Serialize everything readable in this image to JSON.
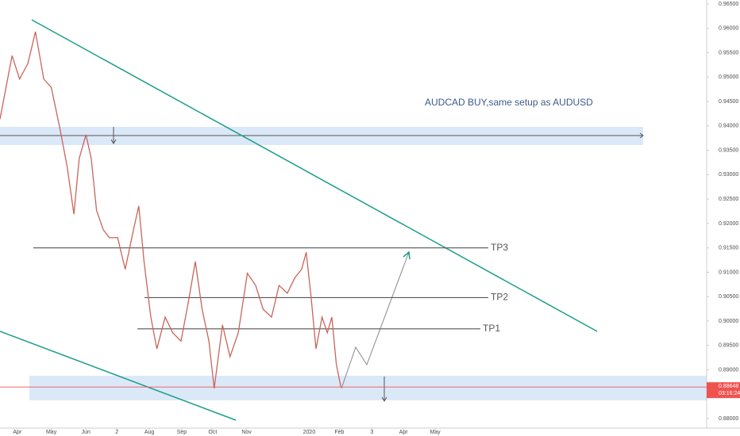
{
  "chart_data": {
    "type": "line",
    "annotation": "AUDCAD BUY,same setup as AUDUSD",
    "series": [
      {
        "color": "#c8655a",
        "x": [
          -2.3,
          -0.7,
          0.3,
          1.4,
          2.4,
          3.5,
          4.5,
          5.6,
          6.6,
          7.5,
          8.2,
          9.1,
          9.8,
          10.5,
          11.4,
          12.2,
          13.3,
          14.3,
          15.4,
          16.1,
          16.8,
          17.7,
          18.5,
          19.6,
          20.6,
          21.7,
          22.7,
          23.6,
          24.5,
          25.4,
          26.1,
          27.2,
          28.2,
          29.3,
          30.5,
          31.6,
          32.6,
          33.7,
          34.7,
          35.8,
          36.8,
          37.7,
          38.3,
          38.9,
          39.6,
          40.4,
          41.1,
          41.7,
          42.3,
          42.9
        ],
        "values": [
          0.9414,
          0.9544,
          0.9496,
          0.9528,
          0.9593,
          0.9496,
          0.9479,
          0.9398,
          0.9317,
          0.9219,
          0.9333,
          0.9382,
          0.9333,
          0.9227,
          0.9187,
          0.9171,
          0.9171,
          0.9106,
          0.9187,
          0.9236,
          0.9122,
          0.9008,
          0.8943,
          0.9008,
          0.8976,
          0.8959,
          0.9041,
          0.9122,
          0.9024,
          0.8959,
          0.8862,
          0.8992,
          0.8927,
          0.8976,
          0.9098,
          0.9073,
          0.9024,
          0.9008,
          0.9073,
          0.9057,
          0.9089,
          0.9106,
          0.9141,
          0.9057,
          0.8943,
          0.9008,
          0.8976,
          0.9008,
          0.8911,
          0.8865
        ]
      }
    ],
    "levels": [
      {
        "label": "TP3",
        "value": 0.915
      },
      {
        "label": "TP2",
        "value": 0.9048
      },
      {
        "label": "TP1",
        "value": 0.8984
      }
    ],
    "last_price": 0.88648,
    "countdown": "03:16:24",
    "last_color": "#ef5350",
    "xlim": [
      -2.3,
      91.4
    ],
    "xticks": [
      {
        "value": 0,
        "label": "Apr"
      },
      {
        "value": 4.5,
        "label": "May"
      },
      {
        "value": 9.1,
        "label": "Jun"
      },
      {
        "value": 13.2,
        "label": "2"
      },
      {
        "value": 17.5,
        "label": "Aug"
      },
      {
        "value": 21.8,
        "label": "Sep"
      },
      {
        "value": 25.9,
        "label": "Oct"
      },
      {
        "value": 30.4,
        "label": "Nov"
      },
      {
        "value": 38.7,
        "label": "2020"
      },
      {
        "value": 42.7,
        "label": "Feb"
      },
      {
        "value": 47,
        "label": "3"
      },
      {
        "value": 51.2,
        "label": "Apr"
      },
      {
        "value": 55.4,
        "label": "May"
      }
    ],
    "ylim": [
      0.87806,
      0.96581
    ],
    "yticks": [
      {
        "value": 0.88,
        "label": "0.88000"
      },
      {
        "value": 0.885,
        "label": "0.88500"
      },
      {
        "value": 0.89,
        "label": "0.89000"
      },
      {
        "value": 0.895,
        "label": "0.89500"
      },
      {
        "value": 0.9,
        "label": "0.90000"
      },
      {
        "value": 0.905,
        "label": "0.90500"
      },
      {
        "value": 0.91,
        "label": "0.91000"
      },
      {
        "value": 0.915,
        "label": "0.91500"
      },
      {
        "value": 0.92,
        "label": "0.92000"
      },
      {
        "value": 0.925,
        "label": "0.92500"
      },
      {
        "value": 0.93,
        "label": "0.93000"
      },
      {
        "value": 0.935,
        "label": "0.93500"
      },
      {
        "value": 0.94,
        "label": "0.94000"
      },
      {
        "value": 0.945,
        "label": "0.94500"
      },
      {
        "value": 0.95,
        "label": "0.95000"
      },
      {
        "value": 0.955,
        "label": "0.95500"
      },
      {
        "value": 0.96,
        "label": "0.96000"
      },
      {
        "value": 0.965,
        "label": "0.96500"
      }
    ]
  }
}
